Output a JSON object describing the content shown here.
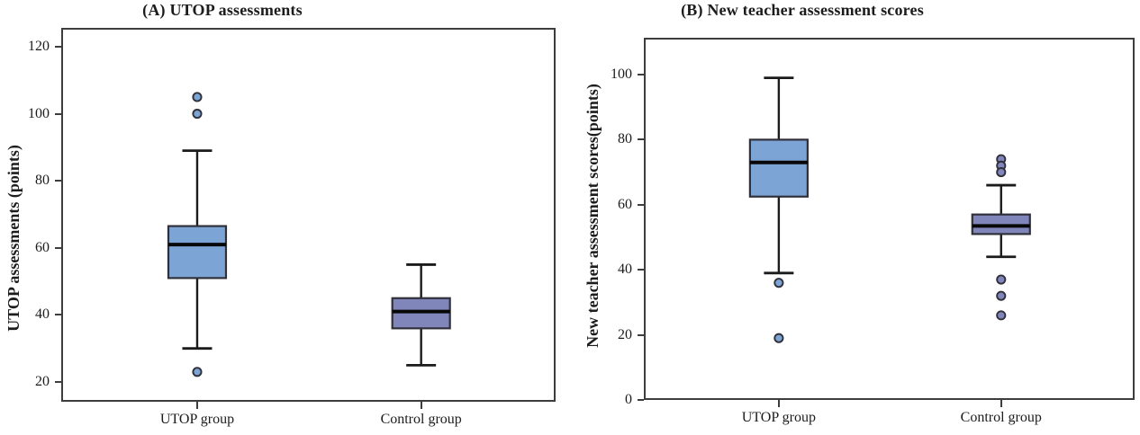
{
  "figure": {
    "background": "#ffffff",
    "frame_color": "#3d3d3d",
    "line_color": "#1b1b1b"
  },
  "chart_data": [
    {
      "type": "boxplot",
      "panel_label": "A",
      "title": "(A) UTOP assessments",
      "ylabel": "UTOP assessments (points)",
      "xlabel": "",
      "yticks": [
        120,
        100,
        80,
        60,
        40,
        20
      ],
      "ylim": [
        14,
        126
      ],
      "grid": false,
      "legend": "none",
      "categories": [
        "UTOP group",
        "Control group"
      ],
      "series": [
        {
          "name": "UTOP group",
          "color": "#7CA5D6",
          "whisker_low": 30,
          "q1": 51,
          "median": 61,
          "q3": 66.5,
          "whisker_high": 89,
          "outliers": [
            105,
            100,
            23
          ]
        },
        {
          "name": "Control group",
          "color": "#8186BA",
          "whisker_low": 25,
          "q1": 36,
          "median": 41,
          "q3": 45,
          "whisker_high": 55,
          "outliers": []
        }
      ]
    },
    {
      "type": "boxplot",
      "panel_label": "B",
      "title": "(B) New teacher assessment scores",
      "ylabel": "New teacher assessment scores(points)",
      "xlabel": "",
      "yticks": [
        100,
        80,
        60,
        40,
        20,
        0
      ],
      "ylim": [
        -11,
        111
      ],
      "grid": false,
      "legend": "none",
      "categories": [
        "UTOP group",
        "Control group"
      ],
      "series": [
        {
          "name": "UTOP group",
          "color": "#7CA5D6",
          "whisker_low": 39,
          "q1": 62.5,
          "median": 73,
          "q3": 80,
          "whisker_high": 99,
          "outliers": [
            36,
            19
          ]
        },
        {
          "name": "Control group",
          "color": "#8186BA",
          "whisker_low": 44,
          "q1": 51,
          "median": 53.5,
          "q3": 57,
          "whisker_high": 66,
          "outliers": [
            74,
            72,
            70,
            37,
            32,
            26
          ]
        }
      ]
    }
  ]
}
